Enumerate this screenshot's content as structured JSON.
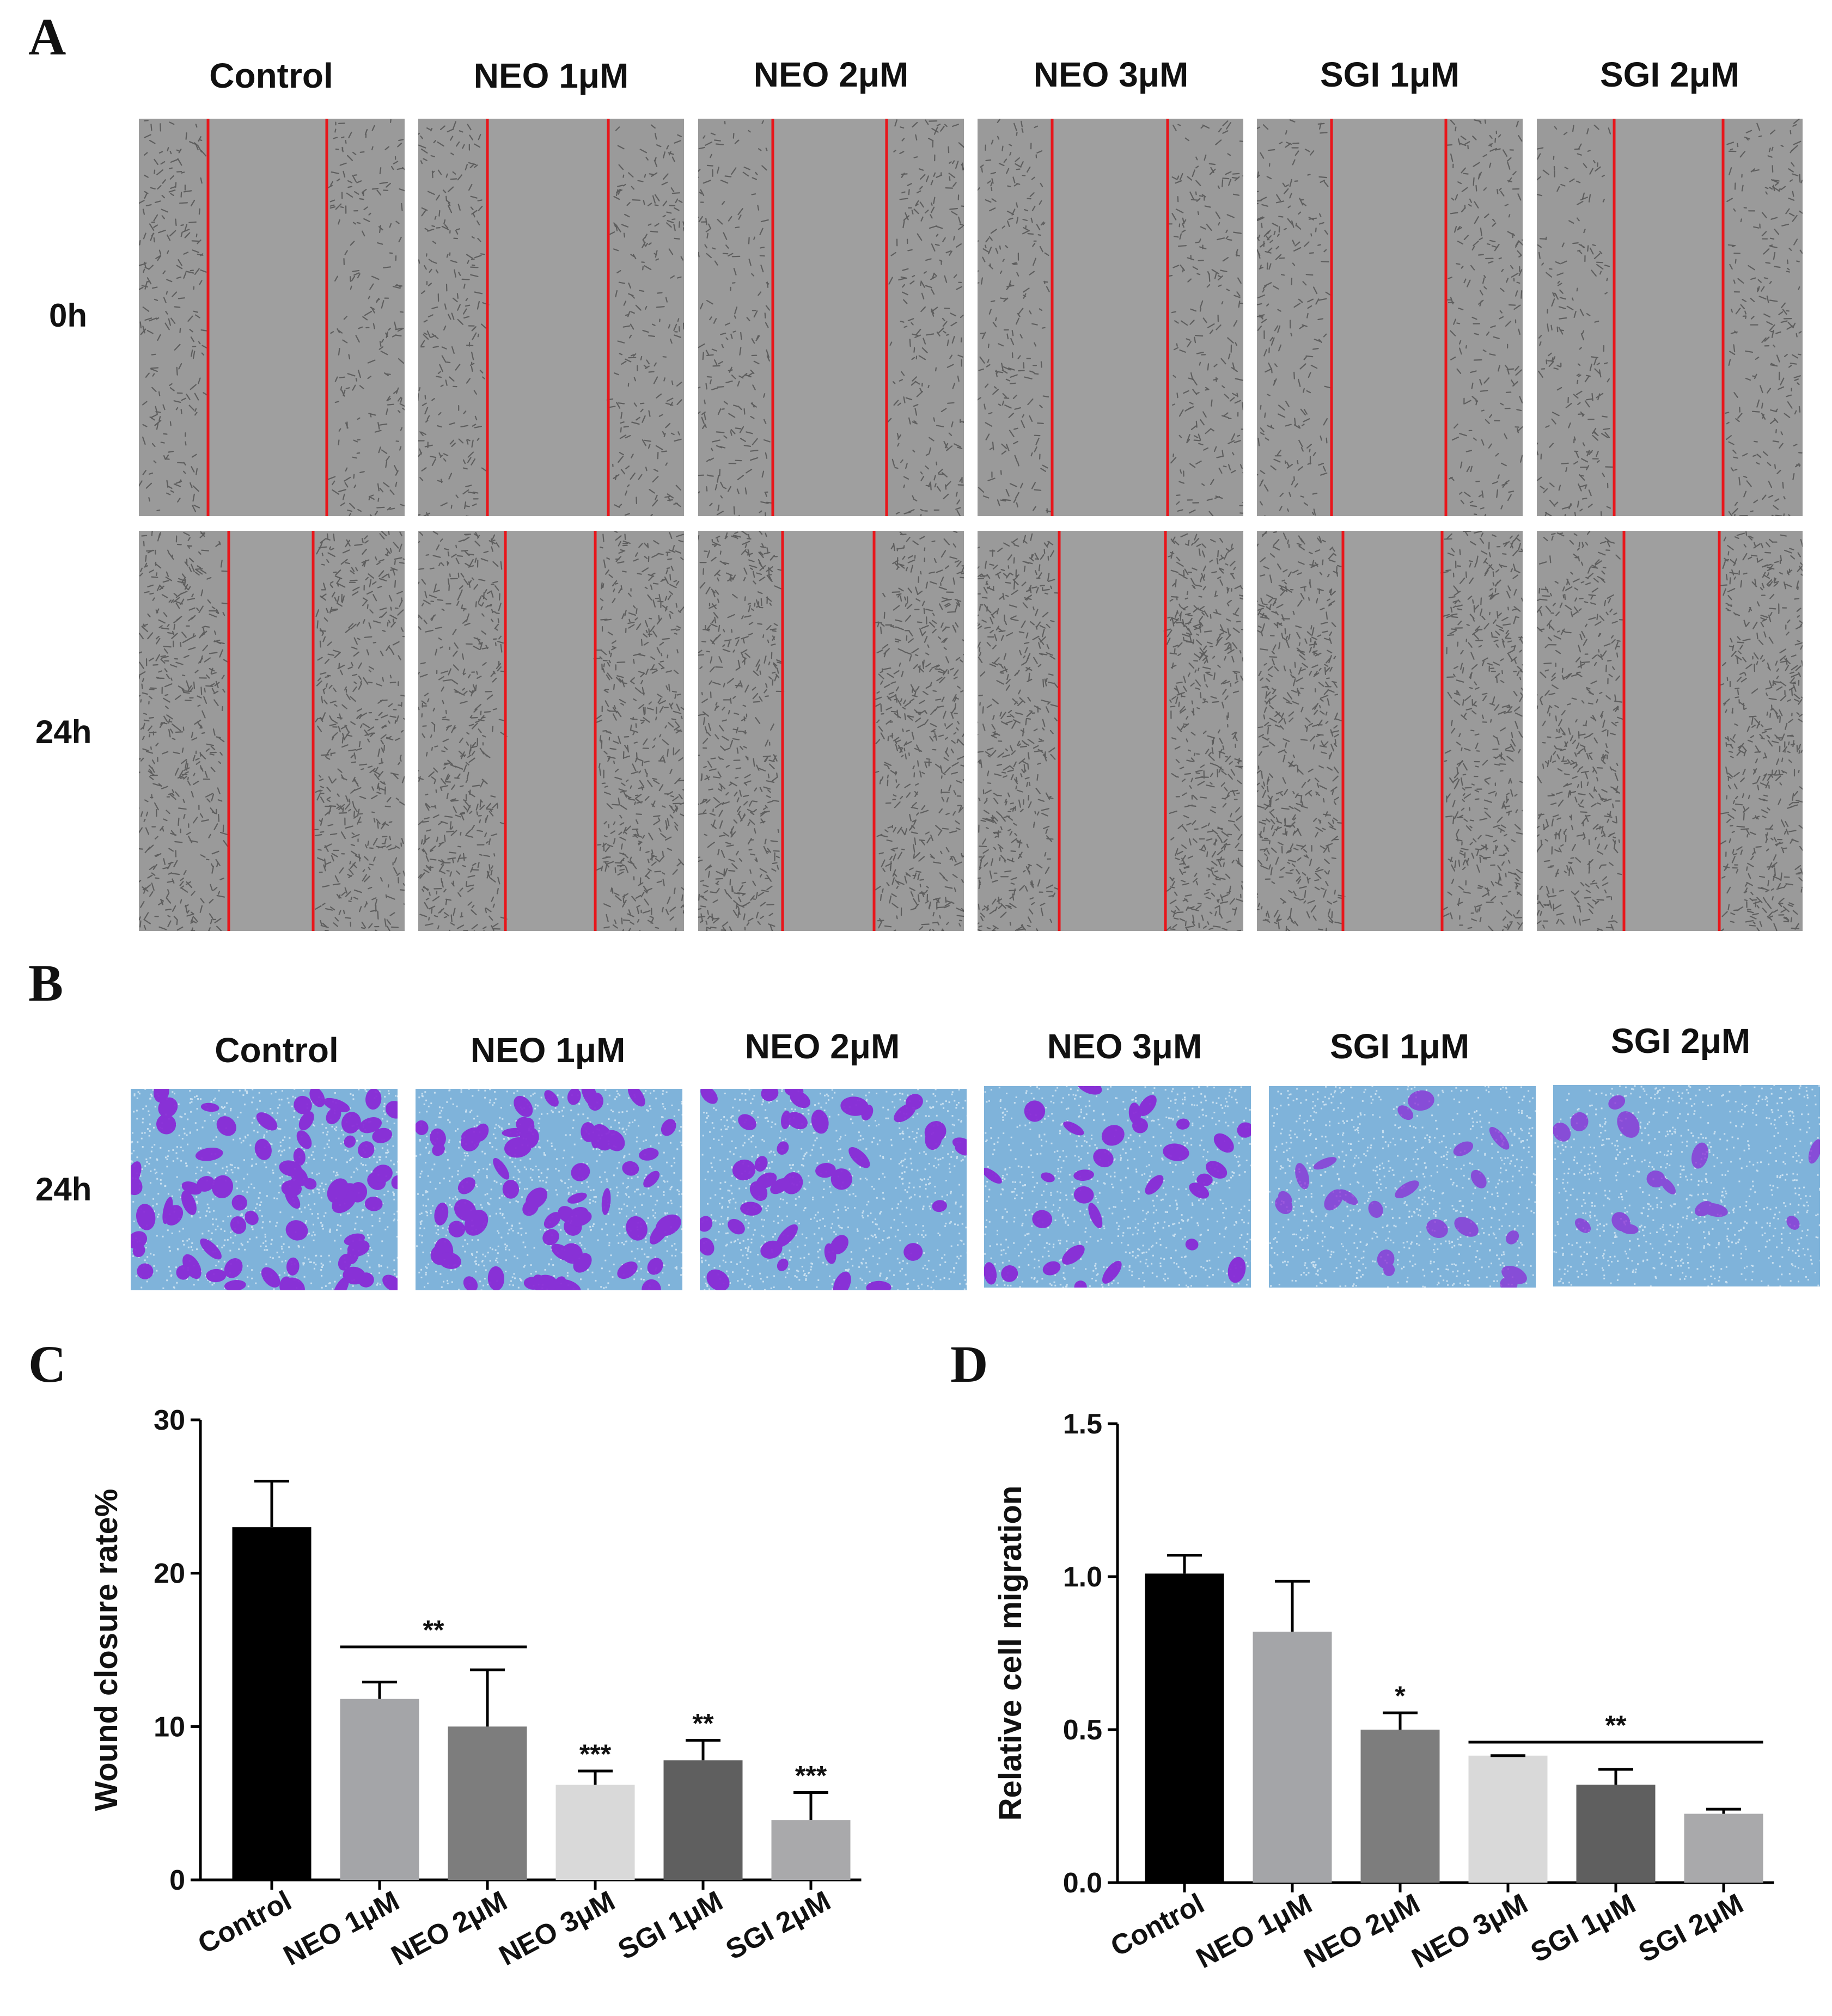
{
  "panels": {
    "a": "A",
    "b": "B",
    "c": "C",
    "d": "D"
  },
  "panel_a": {
    "columns": [
      "Control",
      "NEO 1μM",
      "NEO 2μM",
      "NEO 3μM",
      "SGI 1μM",
      "SGI 2μM"
    ],
    "rows": [
      "0h",
      "24h"
    ]
  },
  "panel_b": {
    "columns": [
      "Control",
      "NEO 1μM",
      "NEO 2μM",
      "NEO 3μM",
      "SGI 1μM",
      "SGI 2μM"
    ],
    "rows": [
      "24h"
    ]
  },
  "colors": {
    "scratch_line": "#e8161b",
    "phase_bg": "#9a9a9a",
    "stain_bg": "#7fb3da",
    "stain_cell": "#8a2bd6"
  },
  "chart_data": [
    {
      "type": "bar",
      "title": "",
      "xlabel": "",
      "ylabel": "Wound closure rate%",
      "categories": [
        "Control",
        "NEO 1μM",
        "NEO 2μM",
        "NEO 3μM",
        "SGI 1μM",
        "SGI 2μM"
      ],
      "values": [
        23.0,
        11.8,
        10.0,
        6.2,
        7.8,
        3.9
      ],
      "errors": [
        3.0,
        1.1,
        3.7,
        0.9,
        1.3,
        1.8
      ],
      "colors": [
        "#000000",
        "#a4a5a8",
        "#7d7d7d",
        "#d9d9d9",
        "#5f5f5f",
        "#a9a9ab"
      ],
      "ylim": [
        0,
        30
      ],
      "yticks": [
        "0",
        "10",
        "20",
        "30"
      ],
      "annotations": [
        {
          "text": "**",
          "bracket": [
            "NEO 1μM",
            "NEO 2μM"
          ]
        },
        {
          "text": "***",
          "category": "NEO 3μM"
        },
        {
          "text": "**",
          "category": "SGI 1μM"
        },
        {
          "text": "***",
          "category": "SGI 2μM"
        }
      ]
    },
    {
      "type": "bar",
      "title": "",
      "xlabel": "",
      "ylabel": "Relative cell migration",
      "categories": [
        "Control",
        "NEO  1μM",
        "NEO 2μM",
        "NEO  3μM",
        "SGI 1μM",
        "SGI 2μM"
      ],
      "values": [
        1.01,
        0.82,
        0.5,
        0.415,
        0.32,
        0.225
      ],
      "errors": [
        0.06,
        0.165,
        0.055,
        0.0,
        0.05,
        0.015
      ],
      "colors": [
        "#000000",
        "#a4a5a8",
        "#7d7d7d",
        "#d9d9d9",
        "#5f5f5f",
        "#a9a9ab"
      ],
      "ylim": [
        0,
        1.5
      ],
      "yticks": [
        "0.0",
        "0.5",
        "1.0",
        "1.5"
      ],
      "annotations": [
        {
          "text": "*",
          "category": "NEO 2μM"
        },
        {
          "text": "**",
          "bracket": [
            "NEO  3μM",
            "SGI 2μM"
          ]
        }
      ]
    }
  ]
}
